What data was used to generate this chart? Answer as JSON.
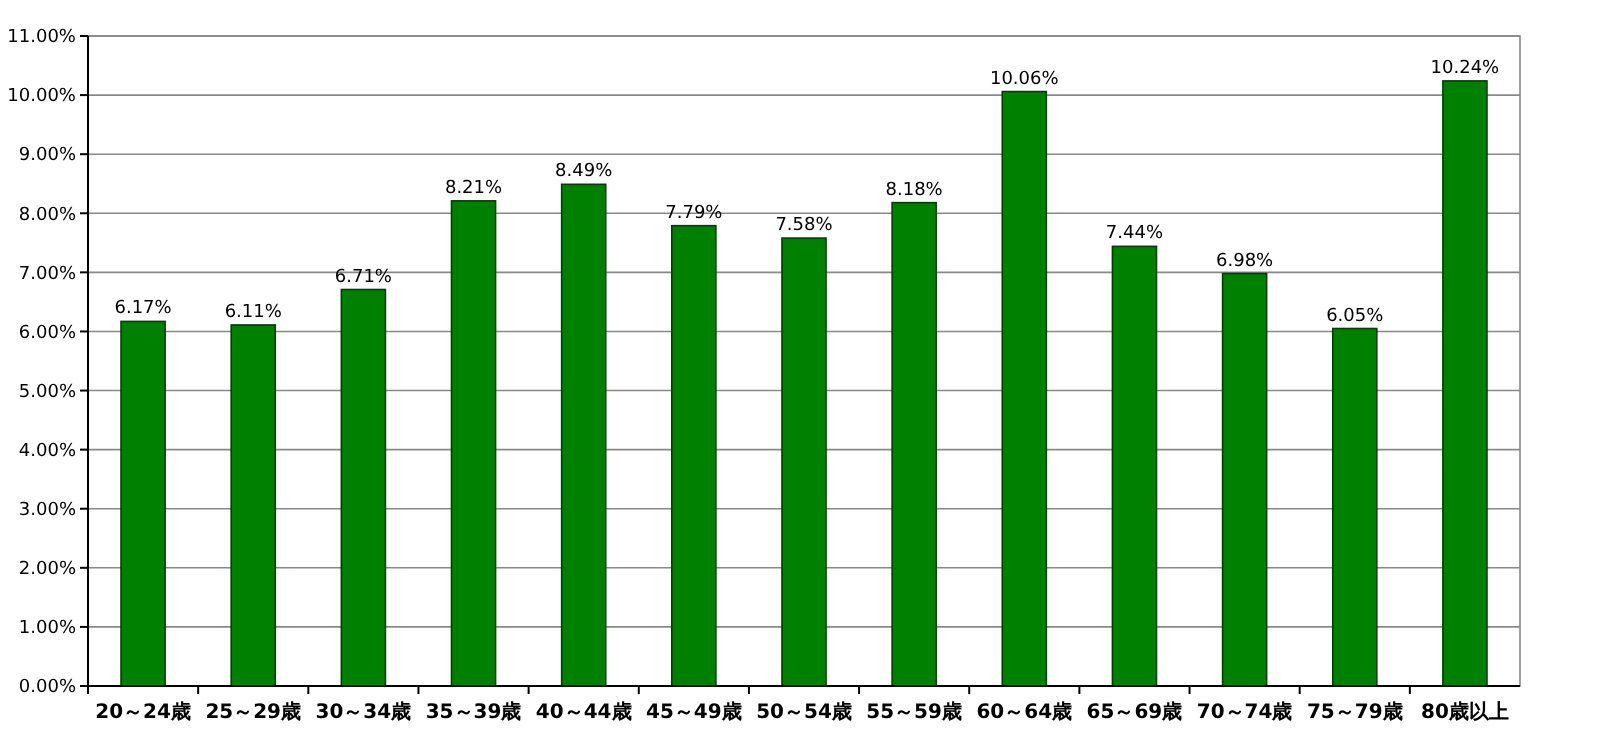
{
  "chart_data": {
    "type": "bar",
    "categories": [
      "20～24歳",
      "25～29歳",
      "30～34歳",
      "35～39歳",
      "40～44歳",
      "45～49歳",
      "50～54歳",
      "55～59歳",
      "60～64歳",
      "65～69歳",
      "70～74歳",
      "75～79歳",
      "80歳以上"
    ],
    "values": [
      6.17,
      6.11,
      6.71,
      8.21,
      8.49,
      7.79,
      7.58,
      8.18,
      10.06,
      7.44,
      6.98,
      6.05,
      10.24
    ],
    "value_labels": [
      "6.17%",
      "6.11%",
      "6.71%",
      "8.21%",
      "8.49%",
      "7.79%",
      "7.58%",
      "8.18%",
      "10.06%",
      "7.44%",
      "6.98%",
      "6.05%",
      "10.24%"
    ],
    "color": "#008000",
    "ylim": [
      0,
      11
    ],
    "yticks": [
      {
        "value": 0,
        "label": "0.00%"
      },
      {
        "value": 1,
        "label": "1.00%"
      },
      {
        "value": 2,
        "label": "2.00%"
      },
      {
        "value": 3,
        "label": "3.00%"
      },
      {
        "value": 4,
        "label": "4.00%"
      },
      {
        "value": 5,
        "label": "5.00%"
      },
      {
        "value": 6,
        "label": "6.00%"
      },
      {
        "value": 7,
        "label": "7.00%"
      },
      {
        "value": 8,
        "label": "8.00%"
      },
      {
        "value": 9,
        "label": "9.00%"
      },
      {
        "value": 10,
        "label": "10.00%"
      },
      {
        "value": 11,
        "label": "11.00%"
      }
    ],
    "grid": "y"
  }
}
